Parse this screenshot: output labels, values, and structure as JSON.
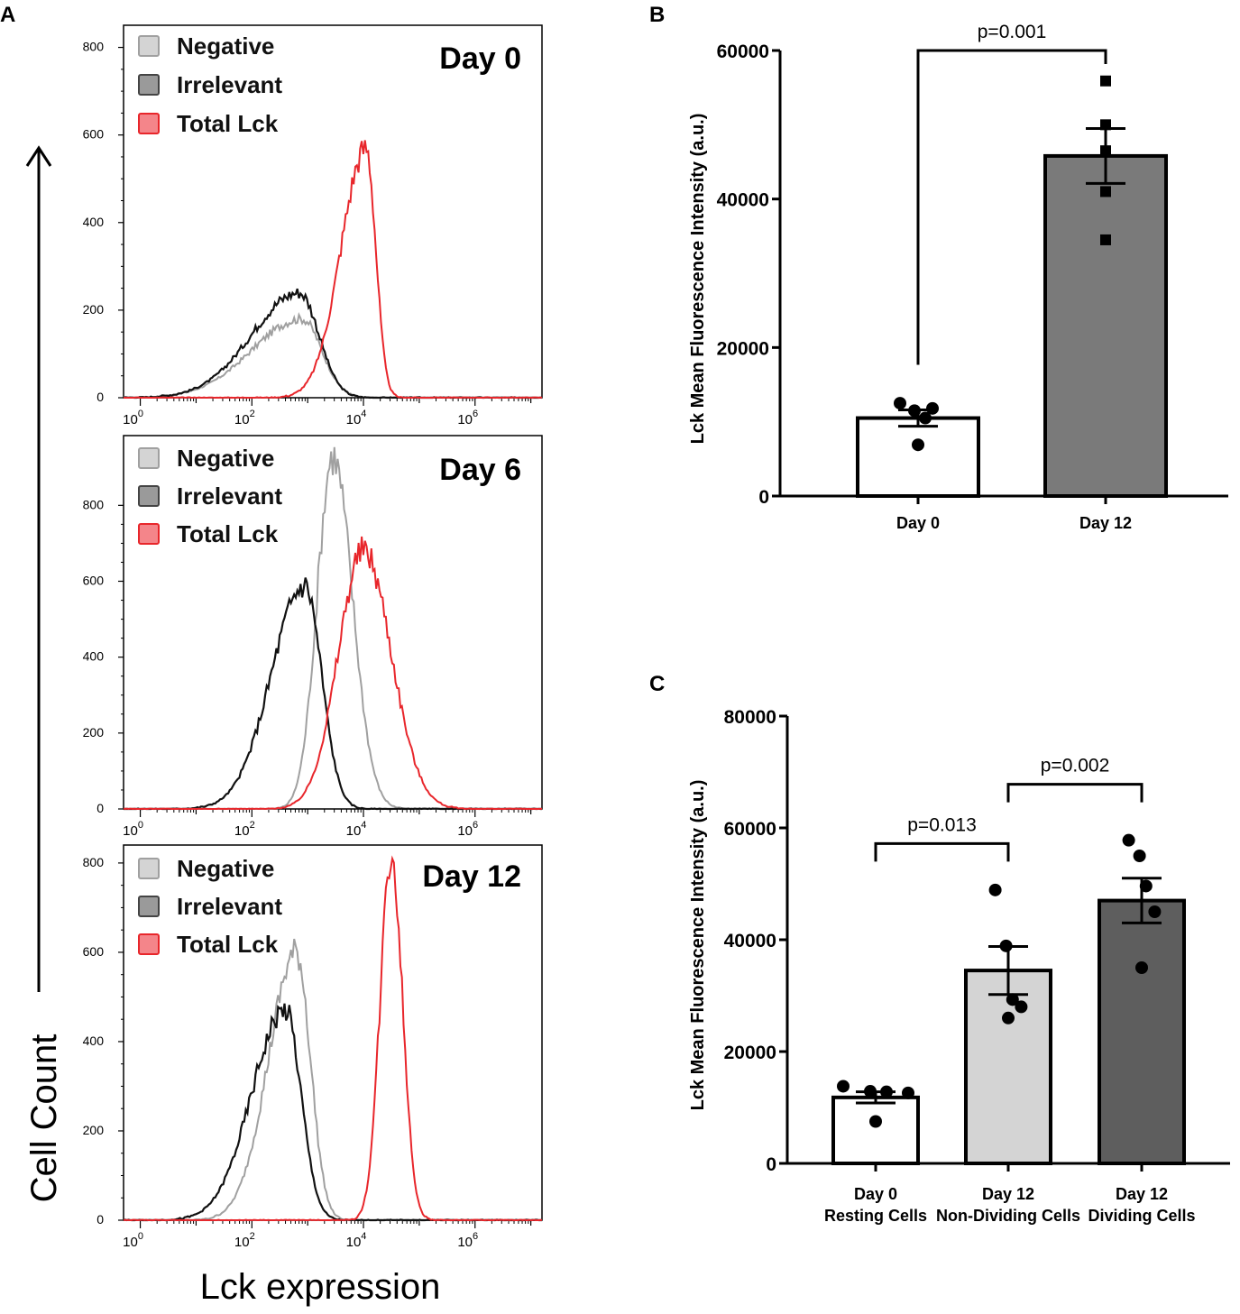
{
  "panel_letters": {
    "a": "A",
    "b": "B",
    "c": "C"
  },
  "panel_a": {
    "y_axis_label": "Cell Count",
    "x_axis_label": "Lck expression",
    "x_scale": "log10",
    "x_ticks": [
      {
        "base": "10",
        "exp": "0"
      },
      {
        "base": "10",
        "exp": "2"
      },
      {
        "base": "10",
        "exp": "4"
      },
      {
        "base": "10",
        "exp": "6"
      }
    ],
    "series_styles": {
      "Negative": {
        "color": "#a0a0a0",
        "swatch": "#d4d4d4",
        "swatch_border": "#a0a0a0"
      },
      "Irrelevant": {
        "color": "#111111",
        "swatch": "#9a9a9a",
        "swatch_border": "#444444"
      },
      "Total Lck": {
        "color": "#e8262b",
        "swatch": "#f4858a",
        "swatch_border": "#e8262b"
      }
    },
    "legend_entries": [
      "Negative",
      "Irrelevant",
      "Total Lck"
    ]
  },
  "chart_data": [
    {
      "type": "line",
      "id": "hist-day0",
      "title": "Day 0",
      "xlabel": "Lck expression",
      "ylabel": "Cell Count",
      "xscale": "log10",
      "xlim": [
        -0.3,
        7.2
      ],
      "ylim": [
        0,
        830
      ],
      "yticks": [
        0,
        200,
        400,
        600,
        800
      ],
      "series": [
        {
          "name": "Negative",
          "peak_log10": 2.9,
          "peak_count": 180,
          "sd_left": 0.9,
          "sd_right": 0.35
        },
        {
          "name": "Irrelevant",
          "peak_log10": 2.85,
          "peak_count": 240,
          "sd_left": 0.85,
          "sd_right": 0.35
        },
        {
          "name": "Total Lck",
          "peak_log10": 4.05,
          "peak_count": 570,
          "sd_left": 0.45,
          "sd_right": 0.17
        }
      ]
    },
    {
      "type": "line",
      "id": "hist-day6",
      "title": "Day 6",
      "xlabel": "Lck expression",
      "ylabel": "Cell Count",
      "xscale": "log10",
      "xlim": [
        -0.3,
        7.2
      ],
      "ylim": [
        0,
        960
      ],
      "yticks": [
        0,
        200,
        400,
        600,
        800
      ],
      "series": [
        {
          "name": "Negative",
          "peak_log10": 3.45,
          "peak_count": 930,
          "sd_left": 0.28,
          "sd_right": 0.35
        },
        {
          "name": "Irrelevant",
          "peak_log10": 2.95,
          "peak_count": 590,
          "sd_left": 0.6,
          "sd_right": 0.3
        },
        {
          "name": "Total Lck",
          "peak_log10": 4.0,
          "peak_count": 680,
          "sd_left": 0.45,
          "sd_right": 0.5
        }
      ]
    },
    {
      "type": "line",
      "id": "hist-day12",
      "title": "Day 12",
      "xlabel": "Lck expression",
      "ylabel": "Cell Count",
      "xscale": "log10",
      "xlim": [
        -0.3,
        7.2
      ],
      "ylim": [
        0,
        820
      ],
      "yticks": [
        0,
        200,
        400,
        600,
        800
      ],
      "series": [
        {
          "name": "Negative",
          "peak_log10": 2.8,
          "peak_count": 600,
          "sd_left": 0.5,
          "sd_right": 0.25
        },
        {
          "name": "Irrelevant",
          "peak_log10": 2.6,
          "peak_count": 470,
          "sd_left": 0.6,
          "sd_right": 0.28
        },
        {
          "name": "Total Lck",
          "peak_log10": 4.5,
          "peak_count": 820,
          "sd_left": 0.2,
          "sd_right": 0.2
        }
      ]
    },
    {
      "type": "bar",
      "id": "bar-b",
      "title": "",
      "ylabel": "Lck Mean Fluorescence Intensity (a.u.)",
      "ylim": [
        0,
        60000
      ],
      "yticks": [
        0,
        20000,
        40000,
        60000
      ],
      "tick_labels": [
        "0",
        "20000",
        "40000",
        "60000"
      ],
      "categories": [
        [
          "Day 0"
        ],
        [
          "Day 12"
        ]
      ],
      "values": [
        10500,
        45800
      ],
      "sem": [
        1100,
        3700
      ],
      "fills": [
        "#ffffff",
        "#7a7a7a"
      ],
      "markers": [
        "circle",
        "square"
      ],
      "points": [
        [
          12500,
          11500,
          11800,
          6900,
          10500
        ],
        [
          55900,
          50000,
          46500,
          41000,
          34500
        ]
      ],
      "comparisons": [
        {
          "from": 0,
          "to": 1,
          "y": 60000,
          "label": "p=0.001"
        }
      ]
    },
    {
      "type": "bar",
      "id": "bar-c",
      "title": "",
      "ylabel": "Lck Mean Fluorescence Intensity (a.u.)",
      "ylim": [
        0,
        80000
      ],
      "yticks": [
        0,
        20000,
        40000,
        60000,
        80000
      ],
      "tick_labels": [
        "0",
        "20000",
        "40000",
        "60000",
        "80000"
      ],
      "categories": [
        [
          "Day 0",
          "Resting Cells"
        ],
        [
          "Day 12",
          "Non-Dividing Cells"
        ],
        [
          "Day 12",
          "Dividing Cells"
        ]
      ],
      "values": [
        11800,
        34500,
        47000
      ],
      "sem": [
        1000,
        4300,
        4000
      ],
      "fills": [
        "#ffffff",
        "#d4d4d4",
        "#5e5e5e"
      ],
      "markers": [
        "circle",
        "circle",
        "circle"
      ],
      "points": [
        [
          13800,
          12900,
          12800,
          12600,
          7500
        ],
        [
          48900,
          38900,
          29300,
          28000,
          26000
        ],
        [
          57800,
          55000,
          49600,
          45000,
          35000
        ]
      ],
      "comparisons": [
        {
          "from": 0,
          "to": 1,
          "y": 57200,
          "label": "p=0.013"
        },
        {
          "from": 1,
          "to": 2,
          "y": 67800,
          "label": "p=0.002"
        }
      ]
    }
  ]
}
